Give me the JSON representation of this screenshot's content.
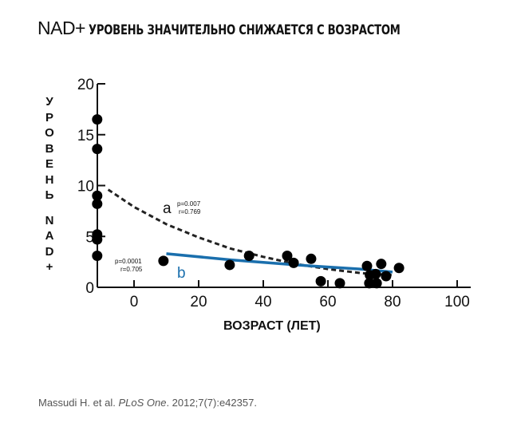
{
  "title": {
    "prefix": "NAD+",
    "text": "УРОВЕНЬ ЗНАЧИТЕЛЬНО СНИЖАЕТСЯ С ВОЗРАСТОМ"
  },
  "citation": {
    "authors": "Massudi H. et al.",
    "journal": "PLoS One",
    "ref": ". 2012;7(7):e42357."
  },
  "chart_data": {
    "type": "scatter",
    "xlabel": "ВОЗРАСТ (ЛЕТ)",
    "ylabel_lines": [
      "УРОВЕНЬ",
      "NAD+"
    ],
    "xlim": [
      -11.5,
      104
    ],
    "ylim": [
      0,
      20
    ],
    "xticks": [
      0,
      20,
      40,
      60,
      80,
      100
    ],
    "yticks": [
      0,
      5,
      10,
      15,
      20
    ],
    "grid": false,
    "colors": {
      "points": "#000000",
      "curve_a": "#222222",
      "curve_b": "#1a6fad"
    },
    "points": [
      [
        -11.4,
        16.5
      ],
      [
        -11.4,
        13.6
      ],
      [
        -11.4,
        9.0
      ],
      [
        -11.4,
        8.2
      ],
      [
        -11.4,
        5.2
      ],
      [
        -11.4,
        4.7
      ],
      [
        -11.4,
        3.1
      ],
      [
        9.1,
        2.6
      ],
      [
        29.6,
        2.2
      ],
      [
        35.6,
        3.1
      ],
      [
        47.4,
        3.1
      ],
      [
        49.4,
        2.4
      ],
      [
        54.8,
        2.8
      ],
      [
        57.8,
        0.6
      ],
      [
        63.7,
        0.4
      ],
      [
        72.1,
        2.1
      ],
      [
        72.8,
        0.4
      ],
      [
        75.1,
        0.4
      ],
      [
        76.5,
        2.3
      ],
      [
        74.8,
        1.3
      ],
      [
        78.0,
        1.1
      ],
      [
        82.0,
        1.9
      ],
      [
        73.0,
        1.2
      ]
    ],
    "curves": [
      {
        "label": "a",
        "stats": [
          "p=0.007",
          "r=0.769"
        ],
        "style": "dashed",
        "values": [
          [
            -8,
            9.6
          ],
          [
            0,
            7.9
          ],
          [
            10,
            6.2
          ],
          [
            20,
            4.9
          ],
          [
            30,
            3.8
          ],
          [
            40,
            3.0
          ],
          [
            50,
            2.3
          ],
          [
            60,
            1.8
          ],
          [
            70,
            1.4
          ],
          [
            80,
            1.2
          ]
        ]
      },
      {
        "label": "b",
        "stats": [
          "p=0.0001",
          "r=0.705"
        ],
        "style": "solid",
        "values": [
          [
            10,
            3.3
          ],
          [
            30,
            2.7
          ],
          [
            50,
            2.2
          ],
          [
            70,
            1.8
          ],
          [
            80,
            1.5
          ]
        ]
      }
    ]
  }
}
